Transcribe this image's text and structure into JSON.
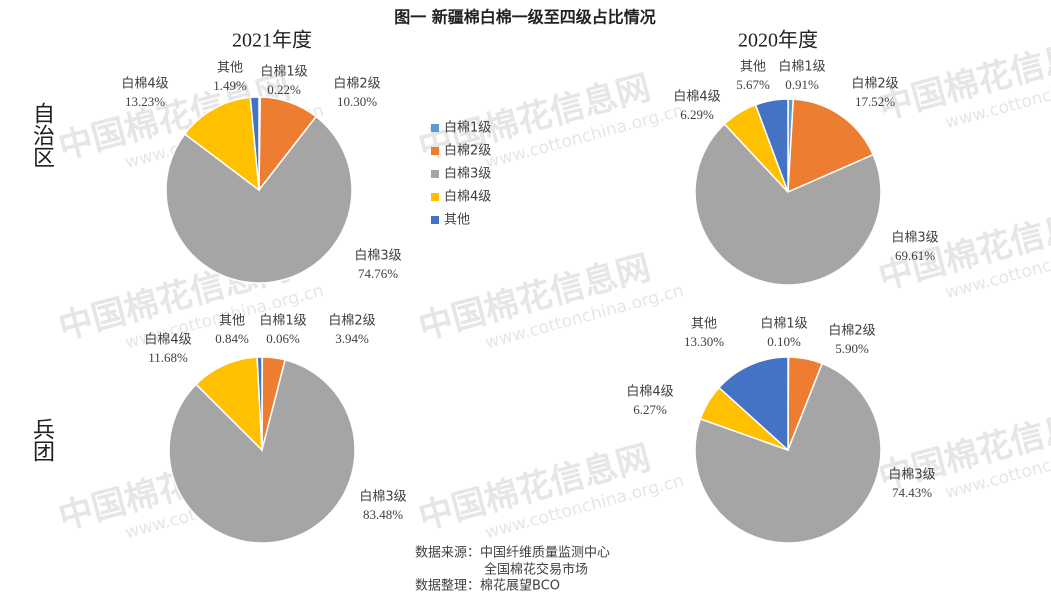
{
  "title": "图一 新疆棉白棉一级至四级占比情况",
  "row_labels": [
    "自治区",
    "兵团"
  ],
  "source": [
    "数据来源：中国纤维质量监测中心",
    "全国棉花交易市场",
    "数据整理：棉花展望BCO"
  ],
  "watermark": {
    "name": "中国棉花信息网",
    "url": "www.cottonchina.org.cn"
  },
  "chart_data": [
    {
      "type": "pie",
      "title": "2021年度",
      "categories": [
        "白棉1级",
        "白棉2级",
        "白棉3级",
        "白棉4级",
        "其他"
      ],
      "values": [
        0.22,
        10.3,
        74.76,
        13.23,
        1.49
      ],
      "value_labels": [
        "0.22%",
        "10.30%",
        "74.76%",
        "13.23%",
        "1.49%"
      ],
      "colors": [
        "#5b9bd5",
        "#ed7d31",
        "#a5a5a5",
        "#ffc000",
        "#4472c4"
      ]
    },
    {
      "type": "pie",
      "title": "2020年度",
      "categories": [
        "白棉1级",
        "白棉2级",
        "白棉3级",
        "白棉4级",
        "其他"
      ],
      "values": [
        0.91,
        17.52,
        69.61,
        6.29,
        5.67
      ],
      "value_labels": [
        "0.91%",
        "17.52%",
        "69.61%",
        "6.29%",
        "5.67%"
      ],
      "colors": [
        "#5b9bd5",
        "#ed7d31",
        "#a5a5a5",
        "#ffc000",
        "#4472c4"
      ]
    },
    {
      "type": "pie",
      "categories": [
        "白棉1级",
        "白棉2级",
        "白棉3级",
        "白棉4级",
        "其他"
      ],
      "values": [
        0.06,
        3.94,
        83.48,
        11.68,
        0.84
      ],
      "value_labels": [
        "0.06%",
        "3.94%",
        "83.48%",
        "11.68%",
        "0.84%"
      ],
      "colors": [
        "#5b9bd5",
        "#ed7d31",
        "#a5a5a5",
        "#ffc000",
        "#4472c4"
      ]
    },
    {
      "type": "pie",
      "categories": [
        "白棉1级",
        "白棉2级",
        "白棉3级",
        "白棉4级",
        "其他"
      ],
      "values": [
        0.1,
        5.9,
        74.43,
        6.27,
        13.3
      ],
      "value_labels": [
        "0.10%",
        "5.90%",
        "74.43%",
        "6.27%",
        "13.30%"
      ],
      "colors": [
        "#5b9bd5",
        "#ed7d31",
        "#a5a5a5",
        "#ffc000",
        "#4472c4"
      ]
    }
  ]
}
